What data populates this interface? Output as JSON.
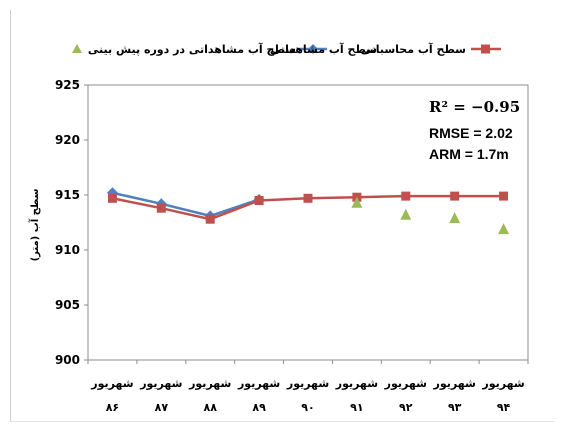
{
  "chart_data": {
    "type": "line",
    "ylabel": "سطح آب (متر)",
    "ylim": [
      900,
      925
    ],
    "yticks": [
      900,
      905,
      910,
      915,
      920,
      925
    ],
    "grid": false,
    "legend_position": "top",
    "categories": [
      [
        "شهریور",
        "۸۶"
      ],
      [
        "شهریور",
        "۸۷"
      ],
      [
        "شهریور",
        "۸۸"
      ],
      [
        "شهریور",
        "۸۹"
      ],
      [
        "شهریور",
        "۹۰"
      ],
      [
        "شهریور",
        "۹۱"
      ],
      [
        "شهریور",
        "۹۲"
      ],
      [
        "شهریور",
        "۹۳"
      ],
      [
        "شهریور",
        "۹۴"
      ]
    ],
    "series": [
      {
        "name": "سطح آب محاسباتی",
        "color": "#c0504d",
        "marker": "square",
        "values": [
          914.7,
          913.8,
          912.8,
          914.5,
          914.7,
          914.8,
          914.9,
          914.9,
          914.9
        ]
      },
      {
        "name": "سطح آب مشاهداتی",
        "color": "#4f81bd",
        "marker": "diamond",
        "values": [
          915.2,
          914.2,
          913.1,
          914.6,
          null,
          null,
          null,
          null,
          null
        ]
      },
      {
        "name": "سطح آب مشاهداتی در دوره پیش بینی",
        "color": "#9bbb59",
        "marker": "triangle",
        "values": [
          null,
          null,
          null,
          null,
          null,
          914.3,
          913.2,
          912.9,
          911.9
        ]
      }
    ],
    "annotations": {
      "r2": "R² = −0.95",
      "rmse": "RMSE = 2.02",
      "arm": "ARM = 1.7m"
    }
  }
}
